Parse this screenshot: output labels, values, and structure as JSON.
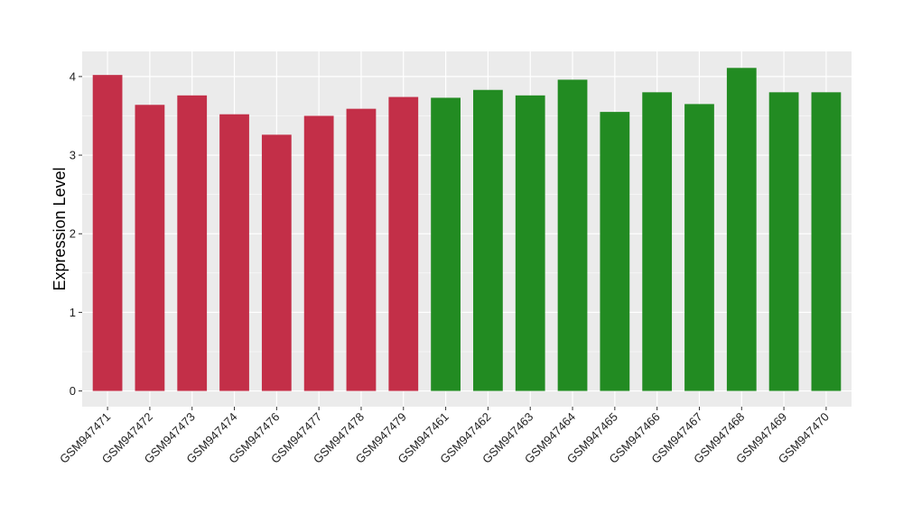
{
  "chart_data": {
    "type": "bar",
    "title": "",
    "xlabel": "",
    "ylabel": "Expression Level",
    "ylim": [
      -0.2,
      4.32
    ],
    "yticks": [
      0,
      1,
      2,
      3,
      4
    ],
    "grid": true,
    "legend": "none",
    "categories": [
      "GSM947471",
      "GSM947472",
      "GSM947473",
      "GSM947474",
      "GSM947476",
      "GSM947477",
      "GSM947478",
      "GSM947479",
      "GSM947461",
      "GSM947462",
      "GSM947463",
      "GSM947464",
      "GSM947465",
      "GSM947466",
      "GSM947467",
      "GSM947468",
      "GSM947469",
      "GSM947470"
    ],
    "values": [
      4.02,
      3.64,
      3.76,
      3.52,
      3.26,
      3.5,
      3.59,
      3.74,
      3.73,
      3.83,
      3.76,
      3.96,
      3.55,
      3.8,
      3.65,
      4.11,
      3.8,
      3.8
    ],
    "bar_colors": [
      "#c32f48",
      "#c32f48",
      "#c32f48",
      "#c32f48",
      "#c32f48",
      "#c32f48",
      "#c32f48",
      "#c32f48",
      "#228b22",
      "#228b22",
      "#228b22",
      "#228b22",
      "#228b22",
      "#228b22",
      "#228b22",
      "#228b22",
      "#228b22",
      "#228b22"
    ],
    "panel_background": "#ebebeb",
    "grid_color": "#ffffff"
  }
}
